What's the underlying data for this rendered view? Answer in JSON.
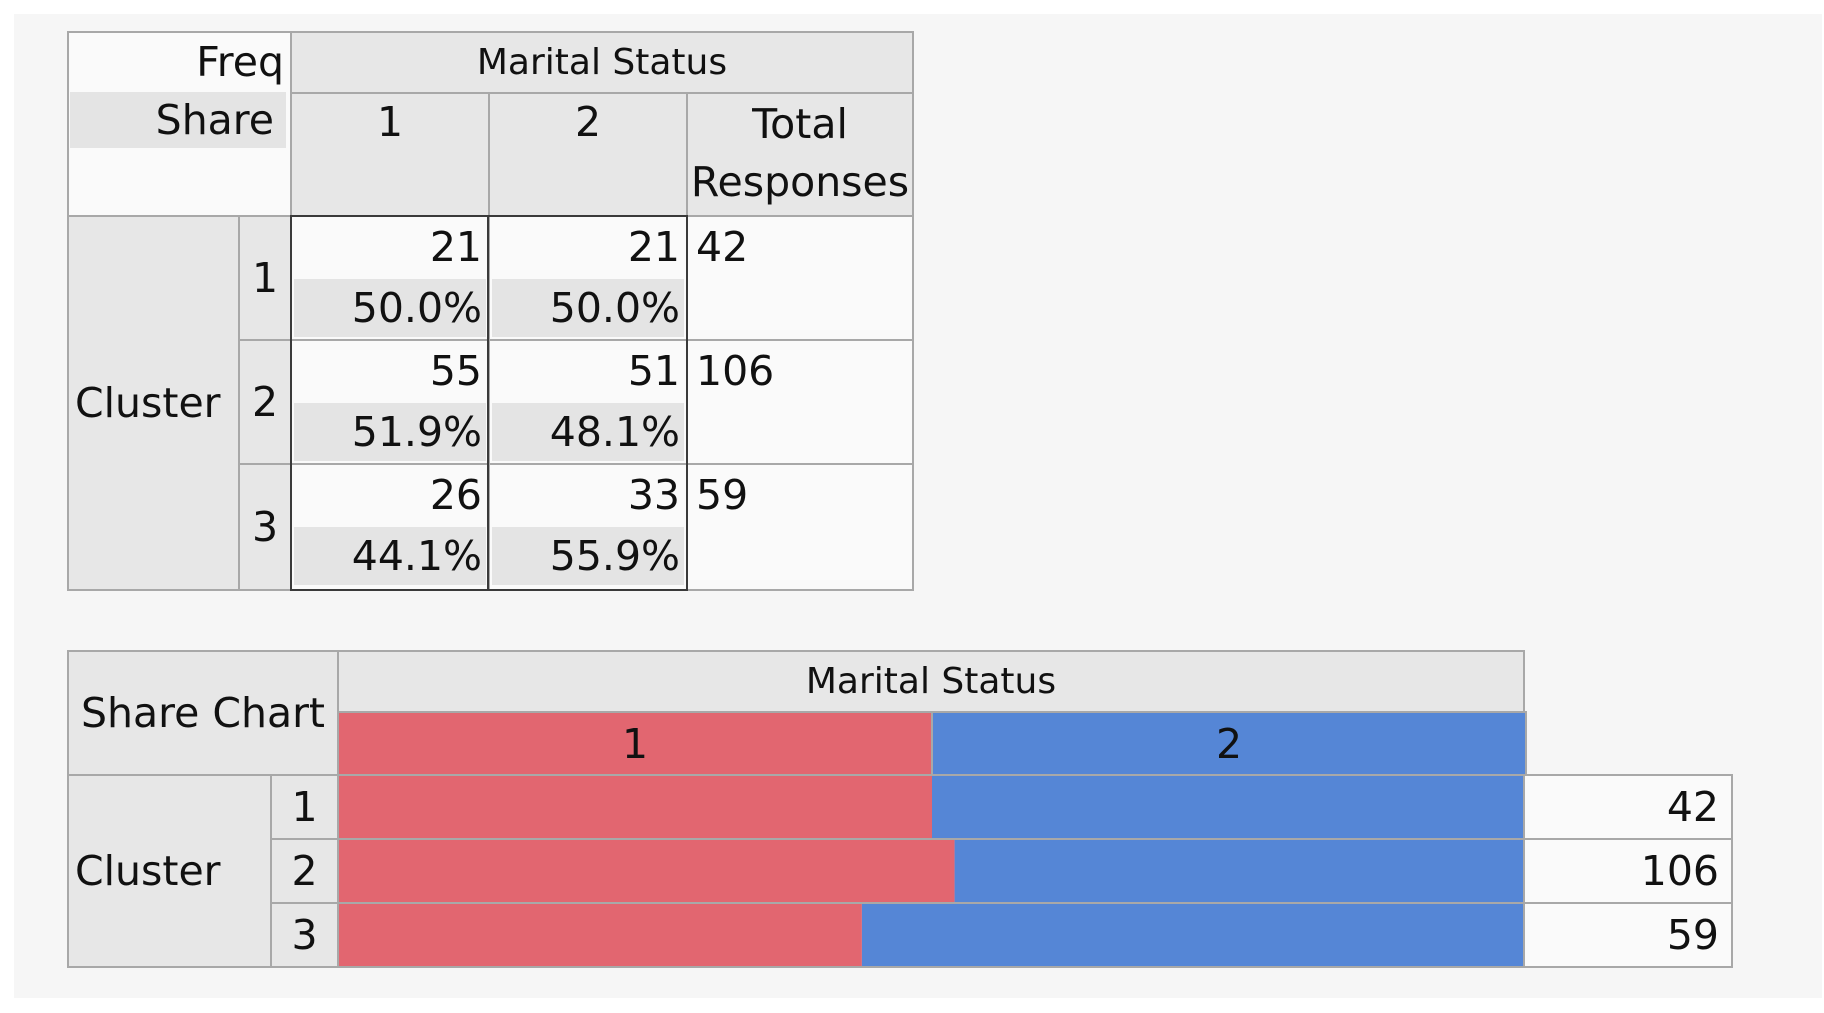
{
  "crosstab": {
    "corner_freq": "Freq",
    "corner_share": "Share",
    "col_group_label": "Marital Status",
    "col_labels": [
      "1",
      "2"
    ],
    "total_label_line1": "Total",
    "total_label_line2": "Responses",
    "row_group_label": "Cluster",
    "rows": [
      {
        "label": "1",
        "freq": [
          "21",
          "21"
        ],
        "share": [
          "50.0%",
          "50.0%"
        ],
        "total": "42"
      },
      {
        "label": "2",
        "freq": [
          "55",
          "51"
        ],
        "share": [
          "51.9%",
          "48.1%"
        ],
        "total": "106"
      },
      {
        "label": "3",
        "freq": [
          "26",
          "33"
        ],
        "share": [
          "44.1%",
          "55.9%"
        ],
        "total": "59"
      }
    ]
  },
  "share_chart": {
    "corner_label": "Share Chart",
    "col_group_label": "Marital Status",
    "col_labels": [
      "1",
      "2"
    ],
    "row_group_label": "Cluster",
    "row_labels": [
      "1",
      "2",
      "3"
    ],
    "totals": [
      "42",
      "106",
      "59"
    ]
  },
  "colors": {
    "series_1": "#e26670",
    "series_2": "#5586d6"
  },
  "chart_data": {
    "type": "bar",
    "stacked": "100%",
    "orientation": "horizontal",
    "title": "Share Chart",
    "categories": [
      "1",
      "2",
      "3"
    ],
    "category_axis_label": "Cluster",
    "legend_title": "Marital Status",
    "series": [
      {
        "name": "1",
        "values": [
          0.5,
          0.519,
          0.441
        ]
      },
      {
        "name": "2",
        "values": [
          0.5,
          0.481,
          0.559
        ]
      }
    ],
    "totals": [
      42,
      106,
      59
    ]
  }
}
